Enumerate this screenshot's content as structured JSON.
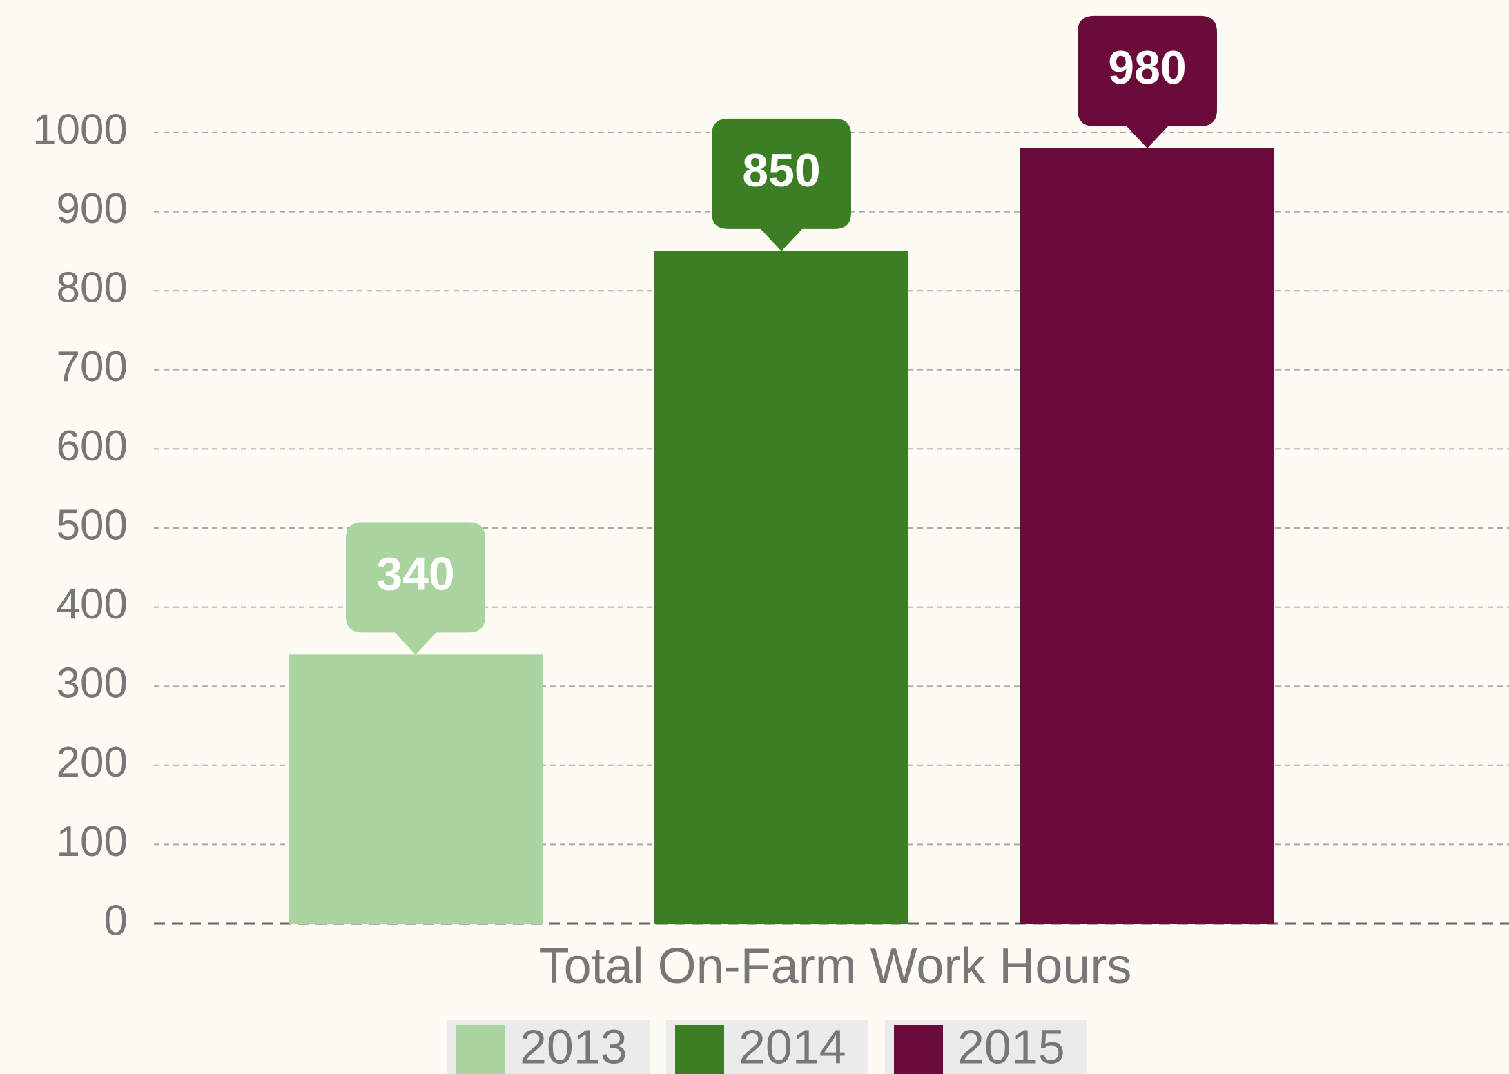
{
  "chart_data": {
    "type": "bar",
    "categories": [
      "Total On-Farm Work Hours"
    ],
    "series": [
      {
        "name": "2013",
        "color": "#a9d39f",
        "values": [
          340
        ]
      },
      {
        "name": "2014",
        "color": "#3b7e23",
        "values": [
          850
        ]
      },
      {
        "name": "2015",
        "color": "#6a0b3a",
        "values": [
          980
        ]
      }
    ],
    "ylim": [
      0,
      1000
    ],
    "yticks": [
      0,
      100,
      200,
      300,
      400,
      500,
      600,
      700,
      800,
      900,
      1000
    ],
    "grid": true
  }
}
